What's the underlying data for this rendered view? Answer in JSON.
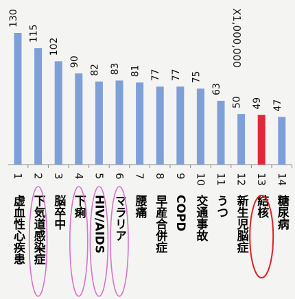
{
  "chart_data": {
    "type": "bar",
    "title": "",
    "xlabel": "",
    "ylabel": "",
    "unit_note": "X1,000,000",
    "ylim": [
      0,
      140
    ],
    "grid": false,
    "legend": "none",
    "colors": {
      "default": "#7f9fd8",
      "highlight": "#e0283a",
      "circle_pink": "#d773c8",
      "circle_red": "#e02020",
      "axis": "#888888"
    },
    "rank_labels": [
      "1",
      "2",
      "3",
      "4",
      "5",
      "6",
      "7",
      "8",
      "9",
      "10",
      "11",
      "12",
      "13",
      "14"
    ],
    "categories": [
      "虚血性心疾患",
      "下気道感染症",
      "脳卒中",
      "下痢",
      "HIV/AIDS",
      "マラリア",
      "腰痛",
      "早産合併症",
      "COPD",
      "交通事故",
      "うつ",
      "新生児脳症",
      "結核",
      "糖尿病"
    ],
    "values": [
      130,
      115,
      102,
      90,
      82,
      83,
      81,
      77,
      77,
      75,
      63,
      50,
      49,
      47
    ],
    "value_labels": [
      "130",
      "115",
      "102",
      "90",
      "82",
      "83",
      "81",
      "77",
      "77",
      "75",
      "63",
      "50",
      "49",
      "47"
    ],
    "highlight_index": 12,
    "circled_pink": [
      1,
      3,
      4,
      5
    ],
    "circled_red": [
      12
    ]
  }
}
